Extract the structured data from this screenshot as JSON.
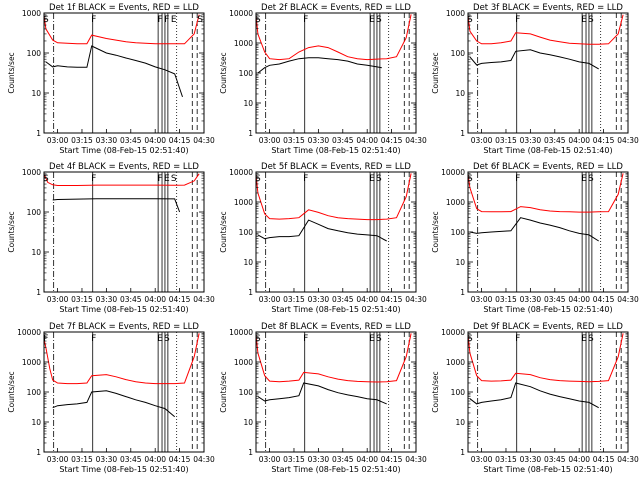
{
  "chart_data": [
    {
      "type": "line",
      "title": "Det 1f BLACK = Events, RED = LLD",
      "xlabel": "Start Time (08-Feb-15 02:51:40)",
      "ylabel": "Counts/sec",
      "ylim": [
        1,
        1000
      ],
      "log_y": true,
      "yticks": [
        "1",
        "10",
        "100",
        "1000"
      ],
      "xticks": [
        "03:00",
        "03:15",
        "03:30",
        "03:45",
        "04:00",
        "04:15",
        "04:30"
      ],
      "markers": [
        "S",
        "F",
        "F",
        "F",
        "E",
        "S"
      ],
      "series": [
        {
          "name": "BLACK = Events",
          "color": "#000000",
          "x": [
            2.88,
            2.95,
            3.0,
            3.1,
            3.2,
            3.3,
            3.35,
            3.5,
            3.6,
            3.7,
            3.8,
            3.9,
            4.0,
            4.1,
            4.2,
            4.28
          ],
          "y": [
            60,
            45,
            48,
            45,
            44,
            44,
            150,
            100,
            88,
            75,
            65,
            56,
            45,
            38,
            30,
            8
          ]
        },
        {
          "name": "RED = LLD",
          "color": "#ff0000",
          "x": [
            2.86,
            2.88,
            2.95,
            3.0,
            3.1,
            3.2,
            3.3,
            3.35,
            3.5,
            3.6,
            3.7,
            3.8,
            3.9,
            4.0,
            4.1,
            4.2,
            4.3,
            4.4,
            4.45
          ],
          "y": [
            900,
            400,
            210,
            180,
            175,
            170,
            170,
            280,
            230,
            210,
            190,
            180,
            175,
            170,
            170,
            170,
            170,
            300,
            900
          ]
        }
      ]
    },
    {
      "type": "line",
      "title": "Det 2f BLACK = Events, RED = LLD",
      "xlabel": "Start Time (08-Feb-15 02:51:40)",
      "ylabel": "Counts/sec",
      "ylim": [
        1,
        10000
      ],
      "log_y": true,
      "yticks": [
        "1",
        "10",
        "100",
        "1000",
        "10000"
      ],
      "xticks": [
        "03:00",
        "03:15",
        "03:30",
        "03:45",
        "04:00",
        "04:15",
        "04:30"
      ],
      "markers": [
        "S",
        "F",
        "E",
        "S"
      ],
      "series": [
        {
          "name": "BLACK = Events",
          "color": "#000000",
          "x": [
            2.88,
            2.95,
            3.0,
            3.1,
            3.2,
            3.3,
            3.4,
            3.5,
            3.6,
            3.7,
            3.8,
            3.9,
            4.0,
            4.1,
            4.15
          ],
          "y": [
            100,
            150,
            180,
            200,
            250,
            300,
            320,
            320,
            300,
            280,
            250,
            200,
            180,
            160,
            150
          ]
        },
        {
          "name": "RED = LLD",
          "color": "#ff0000",
          "x": [
            2.86,
            2.88,
            2.95,
            3.0,
            3.1,
            3.2,
            3.3,
            3.4,
            3.5,
            3.6,
            3.7,
            3.8,
            3.9,
            4.0,
            4.1,
            4.2,
            4.3,
            4.4,
            4.45
          ],
          "y": [
            9000,
            2000,
            500,
            300,
            280,
            300,
            500,
            700,
            800,
            700,
            500,
            350,
            300,
            280,
            290,
            300,
            350,
            1500,
            9000
          ]
        }
      ]
    },
    {
      "type": "line",
      "title": "Det 3f BLACK = Events, RED = LLD",
      "xlabel": "Start Time (08-Feb-15 02:51:40)",
      "ylabel": "Counts/sec",
      "ylim": [
        1,
        1000
      ],
      "log_y": true,
      "yticks": [
        "1",
        "10",
        "100",
        "1000"
      ],
      "xticks": [
        "03:00",
        "03:15",
        "03:30",
        "03:45",
        "04:00",
        "04:15",
        "04:30"
      ],
      "markers": [
        "S",
        "F",
        "E",
        "S"
      ],
      "series": [
        {
          "name": "BLACK = Events",
          "color": "#000000",
          "x": [
            2.88,
            2.95,
            3.0,
            3.1,
            3.2,
            3.3,
            3.35,
            3.5,
            3.6,
            3.7,
            3.8,
            3.9,
            4.0,
            4.1,
            4.2
          ],
          "y": [
            80,
            50,
            55,
            58,
            60,
            65,
            110,
            120,
            100,
            90,
            80,
            70,
            60,
            55,
            40
          ]
        },
        {
          "name": "RED = LLD",
          "color": "#ff0000",
          "x": [
            2.86,
            2.88,
            2.95,
            3.0,
            3.1,
            3.2,
            3.3,
            3.35,
            3.5,
            3.6,
            3.7,
            3.8,
            3.9,
            4.0,
            4.1,
            4.2,
            4.3,
            4.4,
            4.45
          ],
          "y": [
            900,
            350,
            200,
            170,
            170,
            180,
            200,
            320,
            300,
            250,
            210,
            190,
            175,
            170,
            165,
            165,
            170,
            300,
            900
          ]
        }
      ]
    },
    {
      "type": "line",
      "title": "Det 4f BLACK = Events, RED = LLD",
      "xlabel": "Start Time (08-Feb-15 02:51:40)",
      "ylabel": "Counts/sec",
      "ylim": [
        1,
        1000
      ],
      "log_y": true,
      "yticks": [
        "1",
        "10",
        "100",
        "1000"
      ],
      "xticks": [
        "03:00",
        "03:15",
        "03:30",
        "03:45",
        "04:00",
        "04:15",
        "04:30"
      ],
      "markers": [
        "S",
        "F",
        "F",
        "E",
        "S"
      ],
      "series": [
        {
          "name": "BLACK = Events",
          "color": "#000000",
          "x": [
            2.95,
            3.0,
            3.2,
            3.4,
            3.6,
            3.8,
            4.0,
            4.2,
            4.25
          ],
          "y": [
            200,
            205,
            210,
            215,
            215,
            215,
            215,
            212,
            100
          ]
        },
        {
          "name": "RED = LLD",
          "color": "#ff0000",
          "x": [
            2.86,
            2.9,
            2.95,
            3.0,
            3.2,
            3.4,
            3.6,
            3.8,
            4.0,
            4.2,
            4.3,
            4.4,
            4.45
          ],
          "y": [
            900,
            550,
            480,
            460,
            460,
            470,
            470,
            470,
            470,
            465,
            470,
            600,
            900
          ]
        }
      ]
    },
    {
      "type": "line",
      "title": "Det 5f BLACK = Events, RED = LLD",
      "xlabel": "Start Time (08-Feb-15 02:51:40)",
      "ylabel": "Counts/sec",
      "ylim": [
        1,
        10000
      ],
      "log_y": true,
      "yticks": [
        "1",
        "10",
        "100",
        "1000",
        "10000"
      ],
      "xticks": [
        "03:00",
        "03:15",
        "03:30",
        "03:45",
        "04:00",
        "04:15",
        "04:30"
      ],
      "markers": [
        "S",
        "F",
        "E",
        "S"
      ],
      "series": [
        {
          "name": "BLACK = Events",
          "color": "#000000",
          "x": [
            2.88,
            2.95,
            3.0,
            3.1,
            3.2,
            3.3,
            3.4,
            3.5,
            3.6,
            3.7,
            3.8,
            3.9,
            4.0,
            4.1,
            4.2
          ],
          "y": [
            80,
            60,
            65,
            70,
            70,
            75,
            250,
            180,
            130,
            110,
            95,
            85,
            80,
            75,
            50
          ]
        },
        {
          "name": "RED = LLD",
          "color": "#ff0000",
          "x": [
            2.86,
            2.88,
            2.95,
            3.0,
            3.1,
            3.2,
            3.3,
            3.4,
            3.5,
            3.6,
            3.7,
            3.8,
            3.9,
            4.0,
            4.1,
            4.2,
            4.3,
            4.4,
            4.45
          ],
          "y": [
            9000,
            2000,
            400,
            280,
            270,
            280,
            300,
            550,
            450,
            350,
            300,
            280,
            270,
            260,
            260,
            270,
            300,
            1500,
            9000
          ]
        }
      ]
    },
    {
      "type": "line",
      "title": "Det 6f BLACK = Events, RED = LLD",
      "xlabel": "Start Time (08-Feb-15 02:51:40)",
      "ylabel": "Counts/sec",
      "ylim": [
        1,
        10000
      ],
      "log_y": true,
      "yticks": [
        "1",
        "10",
        "100",
        "1000",
        "10000"
      ],
      "xticks": [
        "03:00",
        "03:15",
        "03:30",
        "03:45",
        "04:00",
        "04:15",
        "04:30"
      ],
      "markers": [
        "S",
        "F",
        "E",
        "S"
      ],
      "series": [
        {
          "name": "BLACK = Events",
          "color": "#000000",
          "x": [
            2.88,
            2.95,
            3.0,
            3.1,
            3.2,
            3.3,
            3.4,
            3.5,
            3.6,
            3.7,
            3.8,
            3.9,
            4.0,
            4.1,
            4.2
          ],
          "y": [
            100,
            90,
            95,
            100,
            105,
            110,
            300,
            250,
            200,
            170,
            140,
            110,
            90,
            80,
            50
          ]
        },
        {
          "name": "RED = LLD",
          "color": "#ff0000",
          "x": [
            2.86,
            2.88,
            2.95,
            3.0,
            3.1,
            3.2,
            3.3,
            3.4,
            3.5,
            3.6,
            3.7,
            3.8,
            3.9,
            4.0,
            4.1,
            4.2,
            4.3,
            4.4,
            4.45
          ],
          "y": [
            9000,
            3000,
            600,
            480,
            470,
            470,
            480,
            700,
            650,
            550,
            500,
            480,
            470,
            460,
            460,
            470,
            480,
            1800,
            9000
          ]
        }
      ]
    },
    {
      "type": "line",
      "title": "Det 7f BLACK = Events, RED = LLD",
      "xlabel": "Start Time (08-Feb-15 02:51:40)",
      "ylabel": "Counts/sec",
      "ylim": [
        1,
        10000
      ],
      "log_y": true,
      "yticks": [
        "1",
        "10",
        "100",
        "1000",
        "10000"
      ],
      "xticks": [
        "03:00",
        "03:15",
        "03:30",
        "03:45",
        "04:00",
        "04:15",
        "04:30"
      ],
      "markers": [
        "F",
        "F",
        "E",
        "S"
      ],
      "series": [
        {
          "name": "BLACK = Events",
          "color": "#000000",
          "x": [
            2.95,
            3.0,
            3.1,
            3.2,
            3.3,
            3.35,
            3.5,
            3.6,
            3.7,
            3.8,
            3.9,
            4.0,
            4.1,
            4.2
          ],
          "y": [
            30,
            35,
            38,
            40,
            45,
            100,
            110,
            90,
            70,
            55,
            45,
            35,
            28,
            15
          ]
        },
        {
          "name": "RED = LLD",
          "color": "#ff0000",
          "x": [
            2.86,
            2.88,
            2.92,
            2.95,
            3.0,
            3.1,
            3.2,
            3.3,
            3.35,
            3.5,
            3.6,
            3.7,
            3.8,
            3.9,
            4.0,
            4.1,
            4.2,
            4.3,
            4.4,
            4.45
          ],
          "y": [
            6000,
            3000,
            600,
            250,
            200,
            190,
            190,
            200,
            350,
            380,
            320,
            260,
            220,
            200,
            190,
            190,
            190,
            200,
            1500,
            9000
          ]
        }
      ]
    },
    {
      "type": "line",
      "title": "Det 8f BLACK = Events, RED = LLD",
      "xlabel": "Start Time (08-Feb-15 02:51:40)",
      "ylabel": "Counts/sec",
      "ylim": [
        1,
        10000
      ],
      "log_y": true,
      "yticks": [
        "1",
        "10",
        "100",
        "1000",
        "10000"
      ],
      "xticks": [
        "03:00",
        "03:15",
        "03:30",
        "03:45",
        "04:00",
        "04:15",
        "04:30"
      ],
      "markers": [
        "S",
        "F",
        "E",
        "S"
      ],
      "series": [
        {
          "name": "BLACK = Events",
          "color": "#000000",
          "x": [
            2.88,
            2.95,
            3.0,
            3.1,
            3.2,
            3.3,
            3.35,
            3.5,
            3.6,
            3.7,
            3.8,
            3.9,
            4.0,
            4.1,
            4.2
          ],
          "y": [
            70,
            50,
            55,
            60,
            65,
            75,
            200,
            160,
            120,
            95,
            80,
            70,
            60,
            55,
            40
          ]
        },
        {
          "name": "RED = LLD",
          "color": "#ff0000",
          "x": [
            2.86,
            2.88,
            2.95,
            3.0,
            3.1,
            3.2,
            3.3,
            3.35,
            3.5,
            3.6,
            3.7,
            3.8,
            3.9,
            4.0,
            4.1,
            4.2,
            4.3,
            4.4,
            4.45
          ],
          "y": [
            9000,
            2000,
            350,
            230,
            220,
            230,
            250,
            450,
            400,
            320,
            270,
            240,
            225,
            220,
            215,
            220,
            240,
            1500,
            9000
          ]
        }
      ]
    },
    {
      "type": "line",
      "title": "Det 9f BLACK = Events, RED = LLD",
      "xlabel": "Start Time (08-Feb-15 02:51:40)",
      "ylabel": "Counts/sec",
      "ylim": [
        1,
        10000
      ],
      "log_y": true,
      "yticks": [
        "1",
        "10",
        "100",
        "1000",
        "10000"
      ],
      "xticks": [
        "03:00",
        "03:15",
        "03:30",
        "03:45",
        "04:00",
        "04:15",
        "04:30"
      ],
      "markers": [
        "S",
        "F",
        "E",
        "S"
      ],
      "series": [
        {
          "name": "BLACK = Events",
          "color": "#000000",
          "x": [
            2.88,
            2.95,
            3.0,
            3.1,
            3.2,
            3.3,
            3.35,
            3.5,
            3.6,
            3.7,
            3.8,
            3.9,
            4.0,
            4.1,
            4.2
          ],
          "y": [
            60,
            40,
            45,
            50,
            55,
            65,
            200,
            150,
            110,
            85,
            70,
            60,
            50,
            45,
            30
          ]
        },
        {
          "name": "RED = LLD",
          "color": "#ff0000",
          "x": [
            2.86,
            2.88,
            2.95,
            3.0,
            3.1,
            3.2,
            3.3,
            3.35,
            3.5,
            3.6,
            3.7,
            3.8,
            3.9,
            4.0,
            4.1,
            4.2,
            4.3,
            4.4,
            4.45
          ],
          "y": [
            9000,
            2000,
            350,
            240,
            230,
            235,
            250,
            420,
            380,
            300,
            260,
            240,
            230,
            225,
            220,
            225,
            240,
            1500,
            9000
          ]
        }
      ]
    }
  ]
}
